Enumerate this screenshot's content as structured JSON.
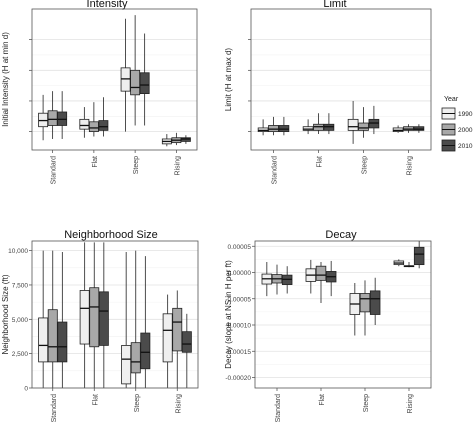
{
  "legend": {
    "title": "Year",
    "items": [
      {
        "label": "1990",
        "color": "#efefef"
      },
      {
        "label": "2000",
        "color": "#a8a8a8"
      },
      {
        "label": "2010",
        "color": "#4b4b4b"
      }
    ],
    "placement": "right"
  },
  "chart_data": [
    {
      "type": "box",
      "title": "Intensity",
      "xlabel": "",
      "ylabel": "Initial Intensity (H at min d)",
      "ylim": [
        -0.15,
        1.0
      ],
      "yticks": [
        0.0,
        0.25,
        0.5,
        0.75
      ],
      "ytick_labels": [],
      "categories": [
        "Standard",
        "Flat",
        "Steep",
        "Rising"
      ],
      "grid": true,
      "series": [
        {
          "name": "1990",
          "boxes": [
            [
              -0.07,
              0.04,
              0.09,
              0.15,
              0.3
            ],
            [
              -0.05,
              0.02,
              0.05,
              0.1,
              0.2
            ],
            [
              0.0,
              0.33,
              0.43,
              0.52,
              0.92
            ],
            [
              -0.12,
              -0.1,
              -0.08,
              -0.06,
              -0.02
            ]
          ]
        },
        {
          "name": "2000",
          "boxes": [
            [
              -0.06,
              0.05,
              0.1,
              0.17,
              0.33
            ],
            [
              -0.04,
              0.0,
              0.03,
              0.08,
              0.24
            ],
            [
              0.05,
              0.3,
              0.36,
              0.5,
              0.95
            ],
            [
              -0.11,
              -0.09,
              -0.07,
              -0.05,
              -0.01
            ]
          ]
        },
        {
          "name": "2010",
          "boxes": [
            [
              -0.06,
              0.05,
              0.1,
              0.16,
              0.33
            ],
            [
              -0.04,
              0.01,
              0.04,
              0.09,
              0.28
            ],
            [
              0.05,
              0.31,
              0.38,
              0.48,
              0.8
            ],
            [
              -0.1,
              -0.08,
              -0.06,
              -0.05,
              -0.03
            ]
          ]
        }
      ]
    },
    {
      "type": "box",
      "title": "Limit",
      "xlabel": "",
      "ylabel": "Limit (H at max d)",
      "ylim": [
        -0.15,
        1.0
      ],
      "yticks": [
        0.0,
        0.25,
        0.5,
        0.75
      ],
      "ytick_labels": [],
      "categories": [
        "Standard",
        "Flat",
        "Steep",
        "Rising"
      ],
      "grid": true,
      "series": [
        {
          "name": "1990",
          "boxes": [
            [
              -0.03,
              0.0,
              0.01,
              0.03,
              0.1
            ],
            [
              -0.02,
              0.01,
              0.02,
              0.04,
              0.1
            ],
            [
              -0.1,
              0.01,
              0.04,
              0.1,
              0.25
            ],
            [
              -0.01,
              0.0,
              0.01,
              0.03,
              0.05
            ]
          ]
        },
        {
          "name": "2000",
          "boxes": [
            [
              -0.03,
              0.0,
              0.02,
              0.05,
              0.12
            ],
            [
              -0.02,
              0.01,
              0.04,
              0.06,
              0.15
            ],
            [
              -0.05,
              0.01,
              0.03,
              0.07,
              0.2
            ],
            [
              -0.01,
              0.01,
              0.02,
              0.04,
              0.06
            ]
          ]
        },
        {
          "name": "2010",
          "boxes": [
            [
              -0.03,
              0.0,
              0.02,
              0.05,
              0.12
            ],
            [
              -0.02,
              0.01,
              0.04,
              0.06,
              0.15
            ],
            [
              -0.02,
              0.03,
              0.07,
              0.1,
              0.21
            ],
            [
              -0.01,
              0.01,
              0.02,
              0.04,
              0.06
            ]
          ]
        }
      ]
    },
    {
      "type": "box",
      "title": "Neighborhood Size",
      "xlabel": "",
      "ylabel": "Neighborhood Size (ft)",
      "ylim": [
        0,
        10700
      ],
      "yticks": [
        0,
        2500,
        5000,
        7500,
        10000
      ],
      "ytick_labels": [
        "0",
        "2,500",
        "5,000",
        "7,500",
        "10,000"
      ],
      "categories": [
        "Standard",
        "Flat",
        "Steep",
        "Rising"
      ],
      "grid": true,
      "series": [
        {
          "name": "1990",
          "boxes": [
            [
              0,
              1900,
              3100,
              5100,
              10000
            ],
            [
              0,
              3200,
              5800,
              7100,
              10600
            ],
            [
              0,
              300,
              2100,
              3100,
              9900
            ],
            [
              0,
              1900,
              4200,
              5400,
              6800
            ]
          ]
        },
        {
          "name": "2000",
          "boxes": [
            [
              0,
              1900,
              3000,
              5700,
              10000
            ],
            [
              0,
              3000,
              5900,
              7300,
              10600
            ],
            [
              0,
              1100,
              1900,
              3300,
              10000
            ],
            [
              0,
              2700,
              4800,
              5800,
              7100
            ]
          ]
        },
        {
          "name": "2010",
          "boxes": [
            [
              0,
              1900,
              3000,
              4800,
              9900
            ],
            [
              0,
              3100,
              5600,
              7000,
              10600
            ],
            [
              0,
              1400,
              2600,
              4000,
              9600
            ],
            [
              0,
              2600,
              3200,
              4100,
              5400
            ]
          ]
        }
      ]
    },
    {
      "type": "box",
      "title": "Decay",
      "xlabel": "",
      "ylabel": "Decay (slope at NS in H per ft)",
      "ylim": [
        -0.00022,
        6e-05
      ],
      "yticks": [
        -0.0002,
        -0.00015,
        -0.0001,
        -5e-05,
        0.0,
        5e-05
      ],
      "ytick_labels": [
        "-0.00020",
        "-0.00015",
        "-0.00010",
        "-0.00005",
        "0.00000",
        "0.00005"
      ],
      "categories": [
        "Standard",
        "Flat",
        "Steep",
        "Rising"
      ],
      "grid": true,
      "series": [
        {
          "name": "1990",
          "boxes": [
            [
              -4.5e-05,
              -2.2e-05,
              -1.2e-05,
              -3e-06,
              2e-05
            ],
            [
              -4e-05,
              -1.7e-05,
              -5e-06,
              7e-06,
              2.4e-05
            ],
            [
              -0.00012,
              -8e-05,
              -6e-05,
              -4e-05,
              -2e-05
            ],
            [
              1.2e-05,
              1.5e-05,
              1.8e-05,
              2.2e-05,
              2.5e-05
            ]
          ]
        },
        {
          "name": "2000",
          "boxes": [
            [
              -4.2e-05,
              -2e-05,
              -1.2e-05,
              -4e-06,
              1.5e-05
            ],
            [
              -5.8e-05,
              -1.5e-05,
              -5e-06,
              1.2e-05,
              2e-05
            ],
            [
              -0.00012,
              -7.5e-05,
              -5e-05,
              -4e-05,
              -1.5e-05
            ],
            [
              1e-05,
              1.2e-05,
              1.2e-05,
              1.3e-05,
              2e-05
            ]
          ]
        },
        {
          "name": "2010",
          "boxes": [
            [
              -4e-05,
              -2.3e-05,
              -1.3e-05,
              -5e-06,
              1.2e-05
            ],
            [
              -4.5e-05,
              -1.8e-05,
              -8e-06,
              2e-06,
              2.2e-05
            ],
            [
              -0.0001,
              -8e-05,
              -5e-05,
              -3.5e-05,
              -1e-05
            ],
            [
              8e-06,
              1.5e-05,
              3.5e-05,
              4.8e-05,
              6e-05
            ]
          ]
        }
      ]
    }
  ]
}
